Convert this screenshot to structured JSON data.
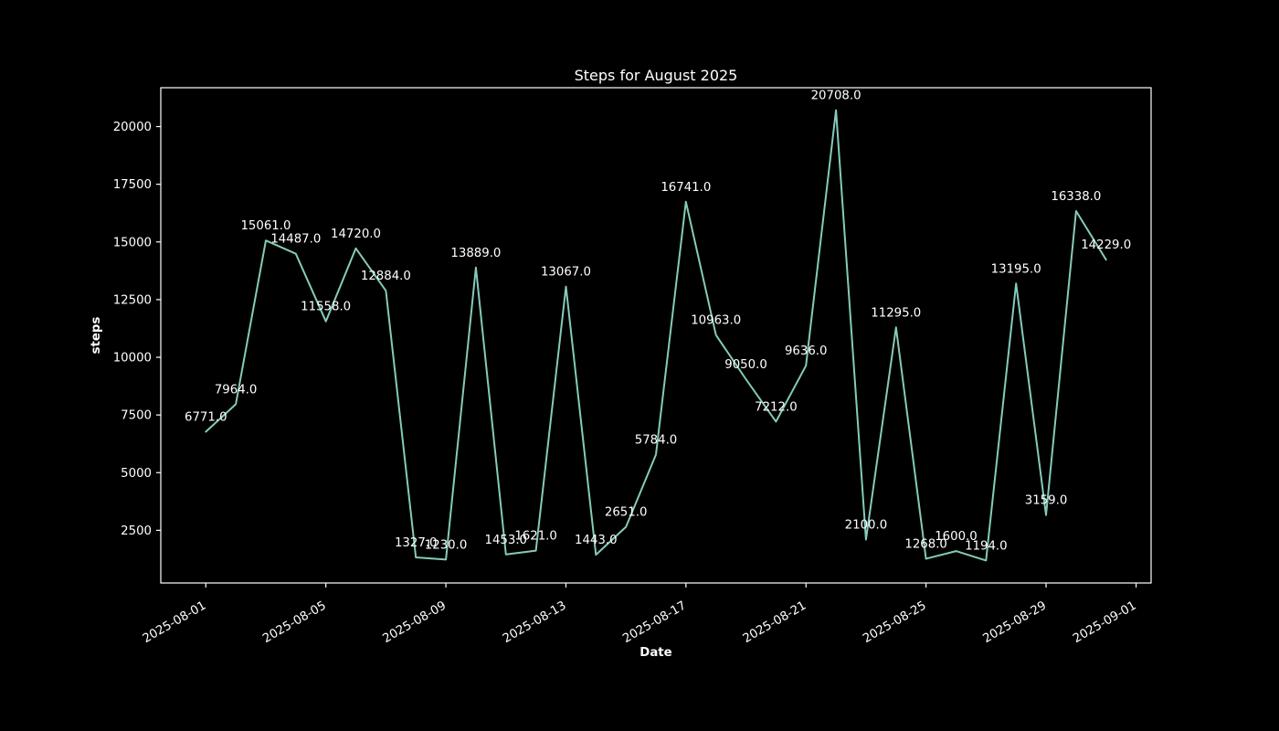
{
  "window": {
    "background_color": "#000000"
  },
  "chart_data": {
    "type": "line",
    "title": "Steps for August 2025",
    "xlabel": "Date",
    "ylabel": "steps",
    "x": [
      "2025-08-01",
      "2025-08-02",
      "2025-08-03",
      "2025-08-04",
      "2025-08-05",
      "2025-08-06",
      "2025-08-07",
      "2025-08-08",
      "2025-08-09",
      "2025-08-10",
      "2025-08-11",
      "2025-08-12",
      "2025-08-13",
      "2025-08-14",
      "2025-08-15",
      "2025-08-16",
      "2025-08-17",
      "2025-08-18",
      "2025-08-19",
      "2025-08-20",
      "2025-08-21",
      "2025-08-22",
      "2025-08-23",
      "2025-08-24",
      "2025-08-25",
      "2025-08-26",
      "2025-08-27",
      "2025-08-28",
      "2025-08-29",
      "2025-08-30",
      "2025-08-31"
    ],
    "values": [
      6771,
      7964,
      15061,
      14487,
      11558,
      14720,
      12884,
      1327,
      1230,
      13889,
      1453,
      1621,
      13067,
      1443,
      2651,
      5784,
      16741,
      10963,
      9050,
      7212,
      9636,
      20708,
      2100,
      11295,
      1268,
      1600,
      1194,
      13195,
      3159,
      16338,
      14229
    ],
    "point_label_decimals": 1,
    "x_ticks": [
      {
        "label": "2025-08-01",
        "day_index": 0
      },
      {
        "label": "2025-08-05",
        "day_index": 4
      },
      {
        "label": "2025-08-09",
        "day_index": 8
      },
      {
        "label": "2025-08-13",
        "day_index": 12
      },
      {
        "label": "2025-08-17",
        "day_index": 16
      },
      {
        "label": "2025-08-21",
        "day_index": 20
      },
      {
        "label": "2025-08-25",
        "day_index": 24
      },
      {
        "label": "2025-08-29",
        "day_index": 28
      },
      {
        "label": "2025-09-01",
        "day_index": 31
      }
    ],
    "y_ticks": [
      2500,
      5000,
      7500,
      10000,
      12500,
      15000,
      17500,
      20000
    ],
    "ylim": [
      218,
      21684
    ],
    "xlim_days": [
      -1.5,
      31.5
    ],
    "grid": false,
    "legend": null,
    "colors": {
      "line": "#85cbba",
      "text": "#ffffff",
      "spine": "#ffffff",
      "background": "#000000"
    }
  }
}
